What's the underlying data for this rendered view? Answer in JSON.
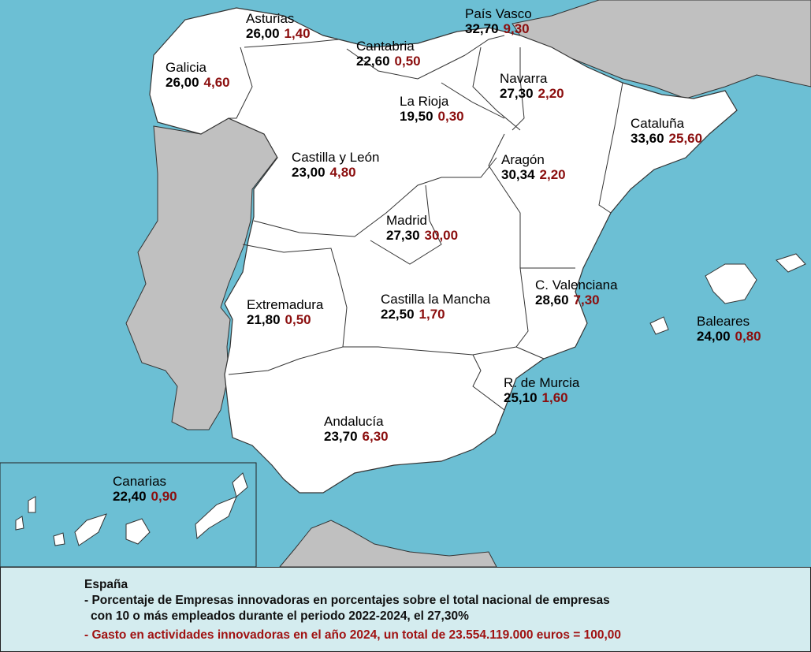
{
  "colors": {
    "sea": "#6cbfd4",
    "spain": "#ffffff",
    "other_land": "#c0c0c0",
    "border": "#333333",
    "percentage": "#000000",
    "spending": "#8b0e0e",
    "legend_bg": "#d4ecef"
  },
  "regions": [
    {
      "name": "Asturias",
      "percentage": "26,00",
      "spending": "1,40"
    },
    {
      "name": "País Vasco",
      "percentage": "32,70",
      "spending": "9,30"
    },
    {
      "name": "Cantabria",
      "percentage": "22,60",
      "spending": "0,50"
    },
    {
      "name": "Galicia",
      "percentage": "26,00",
      "spending": "4,60"
    },
    {
      "name": "Navarra",
      "percentage": "27,30",
      "spending": "2,20"
    },
    {
      "name": "La Rioja",
      "percentage": "19,50",
      "spending": "0,30"
    },
    {
      "name": "Cataluña",
      "percentage": "33,60",
      "spending": "25,60"
    },
    {
      "name": "Castilla y León",
      "percentage": "23,00",
      "spending": "4,80"
    },
    {
      "name": "Aragón",
      "percentage": "30,34",
      "spending": "2,20"
    },
    {
      "name": "Madrid",
      "percentage": "27,30",
      "spending": "30,00"
    },
    {
      "name": "C. Valenciana",
      "percentage": "28,60",
      "spending": "7,30"
    },
    {
      "name": "Extremadura",
      "percentage": "21,80",
      "spending": "0,50"
    },
    {
      "name": "Castilla la Mancha",
      "percentage": "22,50",
      "spending": "1,70"
    },
    {
      "name": "Baleares",
      "percentage": "24,00",
      "spending": "0,80"
    },
    {
      "name": "R. de Murcia",
      "percentage": "25,10",
      "spending": "1,60"
    },
    {
      "name": "Andalucía",
      "percentage": "23,70",
      "spending": "6,30"
    },
    {
      "name": "Canarias",
      "percentage": "22,40",
      "spending": "0,90"
    }
  ],
  "legend": {
    "title": "España",
    "line1": "- Porcentaje de Empresas innovadoras en porcentajes sobre el total nacional de empresas",
    "line2": "con 10 o más empleados durante  el periodo 2022-2024, el 27,30%",
    "line3": "- Gasto en actividades innovadoras en el año 2024, un total de 23.554.119.000 euros = 100,00"
  }
}
